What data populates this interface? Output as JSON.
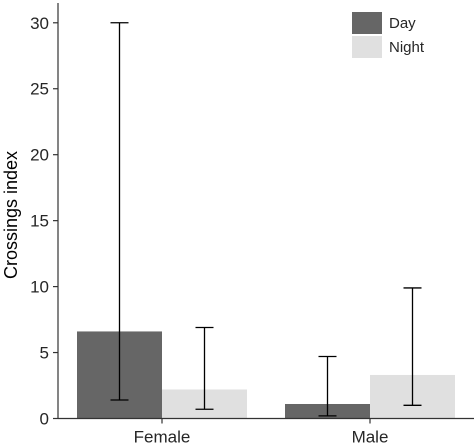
{
  "chart_data": {
    "type": "bar",
    "title": "",
    "xlabel": "",
    "ylabel": "Crossings index",
    "ylim": [
      0,
      31.5
    ],
    "yticks": [
      "0",
      "5",
      "10",
      "15",
      "20",
      "25",
      "30"
    ],
    "categories": [
      "Female",
      "Male"
    ],
    "series": [
      {
        "name": "Day",
        "color": "#666666",
        "values": [
          6.6,
          1.1
        ],
        "err_low": [
          1.4,
          0.2
        ],
        "err_high": [
          30.0,
          4.7
        ]
      },
      {
        "name": "Night",
        "color": "#e0e0e0",
        "values": [
          2.2,
          3.3
        ],
        "err_low": [
          0.7,
          1.0
        ],
        "err_high": [
          6.9,
          9.9
        ]
      }
    ],
    "legend": {
      "position": "top-right",
      "entries": [
        "Day",
        "Night"
      ]
    },
    "grid": false
  }
}
